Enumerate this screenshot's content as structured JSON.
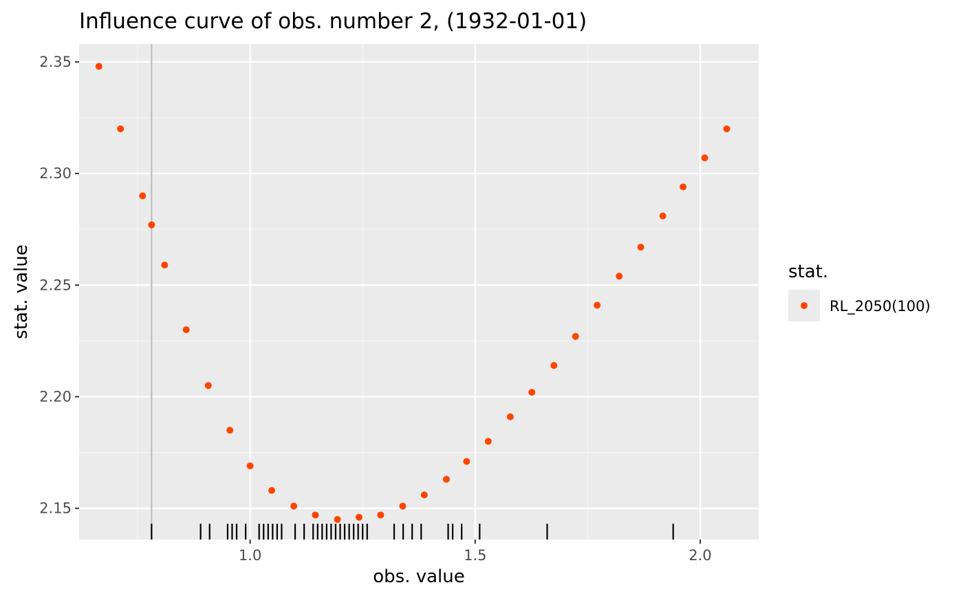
{
  "chart_data": {
    "type": "scatter",
    "title": "Influence curve of obs. number 2, (1932-01-01)",
    "xlabel": "obs. value",
    "ylabel": "stat. value",
    "xlim": [
      0.62,
      2.13
    ],
    "ylim": [
      2.136,
      2.358
    ],
    "x_ticks": [
      1.0,
      1.5,
      2.0
    ],
    "x_tick_labels": [
      "1.0",
      "1.5",
      "2.0"
    ],
    "y_ticks": [
      2.15,
      2.2,
      2.25,
      2.3,
      2.35
    ],
    "y_tick_labels": [
      "2.15",
      "2.20",
      "2.25",
      "2.30",
      "2.35"
    ],
    "grid": true,
    "legend_title": "stat.",
    "legend_position": "right",
    "series": [
      {
        "name": "RL_2050(100)",
        "color": "#ff4500",
        "points": [
          [
            0.664,
            2.348
          ],
          [
            0.712,
            2.32
          ],
          [
            0.761,
            2.29
          ],
          [
            0.781,
            2.277
          ],
          [
            0.81,
            2.259
          ],
          [
            0.858,
            2.23
          ],
          [
            0.907,
            2.205
          ],
          [
            0.955,
            2.185
          ],
          [
            1.0,
            2.169
          ],
          [
            1.048,
            2.158
          ],
          [
            1.097,
            2.151
          ],
          [
            1.145,
            2.147
          ],
          [
            1.194,
            2.145
          ],
          [
            1.242,
            2.146
          ],
          [
            1.29,
            2.147
          ],
          [
            1.339,
            2.151
          ],
          [
            1.387,
            2.156
          ],
          [
            1.436,
            2.163
          ],
          [
            1.481,
            2.171
          ],
          [
            1.529,
            2.18
          ],
          [
            1.578,
            2.191
          ],
          [
            1.626,
            2.202
          ],
          [
            1.675,
            2.214
          ],
          [
            1.723,
            2.227
          ],
          [
            1.771,
            2.241
          ],
          [
            1.82,
            2.254
          ],
          [
            1.868,
            2.267
          ],
          [
            1.917,
            2.281
          ],
          [
            1.962,
            2.294
          ],
          [
            2.01,
            2.307
          ],
          [
            2.059,
            2.32
          ]
        ]
      }
    ],
    "vline": 0.781,
    "rug": [
      0.781,
      0.89,
      0.91,
      0.95,
      0.96,
      0.97,
      0.99,
      1.02,
      1.03,
      1.04,
      1.05,
      1.06,
      1.07,
      1.1,
      1.12,
      1.14,
      1.15,
      1.16,
      1.17,
      1.18,
      1.19,
      1.2,
      1.21,
      1.22,
      1.23,
      1.24,
      1.25,
      1.26,
      1.32,
      1.34,
      1.36,
      1.38,
      1.44,
      1.45,
      1.47,
      1.51,
      1.66,
      1.94
    ]
  }
}
